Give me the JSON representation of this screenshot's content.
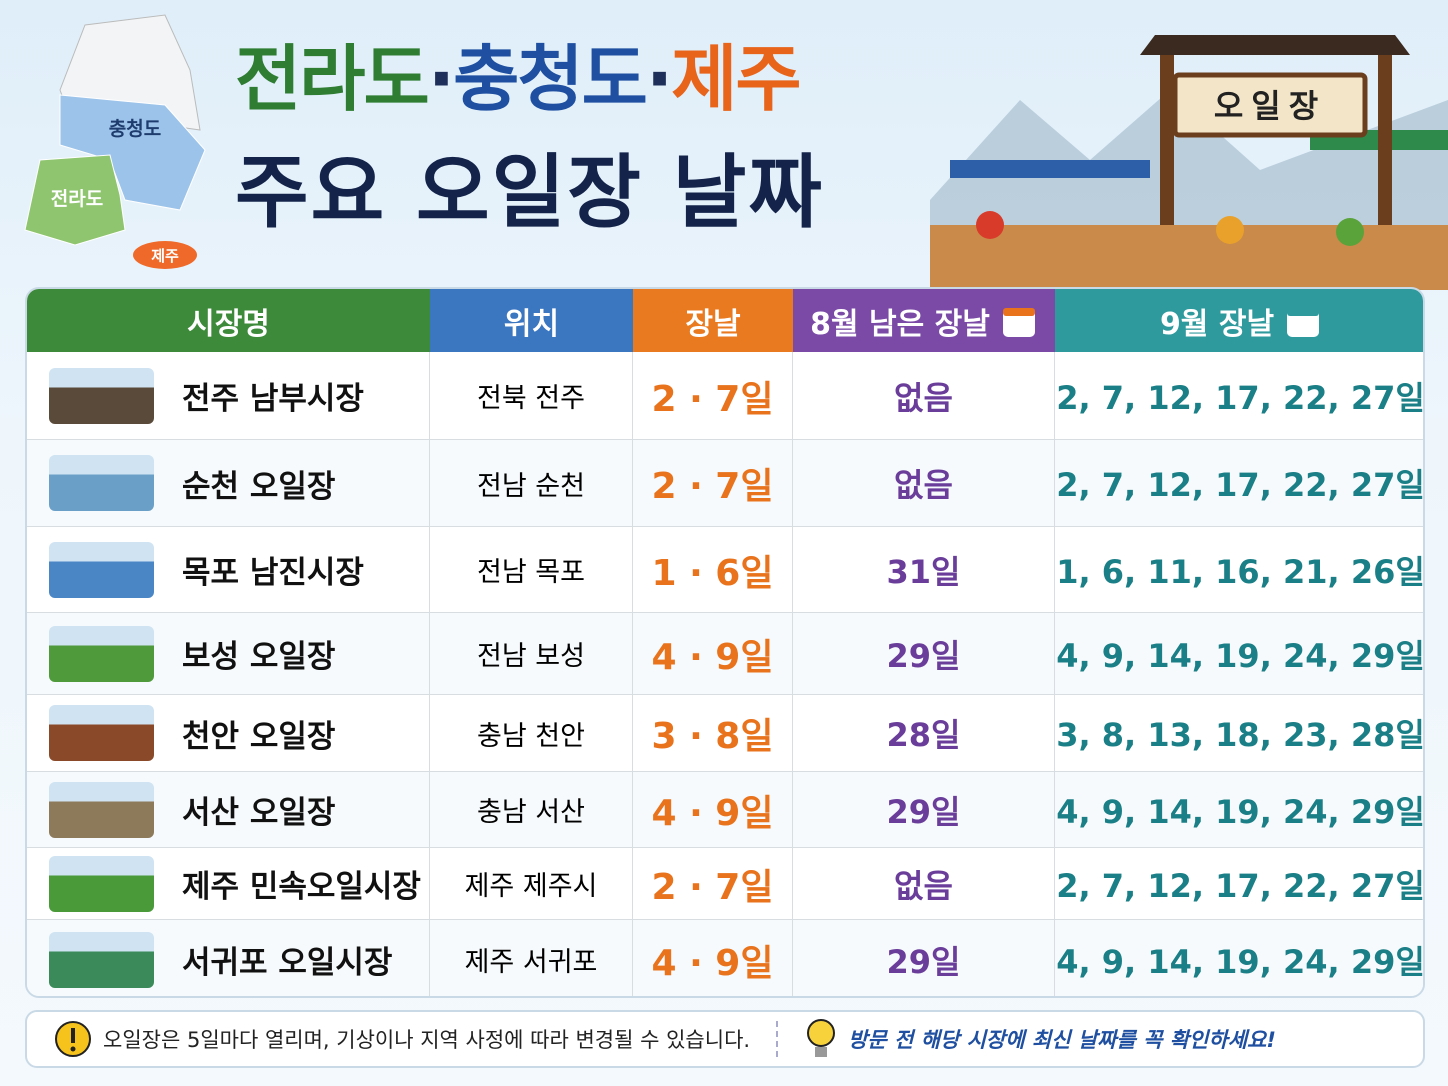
{
  "map": {
    "labels": [
      "충청도",
      "전라도",
      "제주"
    ]
  },
  "title": {
    "line1": [
      "전라도",
      "·",
      "충청도",
      "·",
      "제주"
    ],
    "line2": "주요 오일장 날짜"
  },
  "sign": "오일장",
  "table": {
    "headers": [
      "시장명",
      "위치",
      "장날",
      "8월 남은 장날",
      "9월 장날"
    ],
    "rows": [
      [
        "전주 남부시장",
        "전북 전주",
        "2 · 7일",
        "없음",
        "2, 7, 12, 17, 22, 27일"
      ],
      [
        "순천 오일장",
        "전남 순천",
        "2 · 7일",
        "없음",
        "2, 7, 12, 17, 22, 27일"
      ],
      [
        "목포 남진시장",
        "전남 목포",
        "1 · 6일",
        "31일",
        "1, 6, 11, 16, 21, 26일"
      ],
      [
        "보성 오일장",
        "전남 보성",
        "4 · 9일",
        "29일",
        "4, 9, 14, 19, 24, 29일"
      ],
      [
        "천안 오일장",
        "충남 천안",
        "3 · 8일",
        "28일",
        "3, 8, 13, 18, 23, 28일"
      ],
      [
        "서산 오일장",
        "충남 서산",
        "4 · 9일",
        "29일",
        "4, 9, 14, 19, 24, 29일"
      ],
      [
        "제주 민속오일시장",
        "제주 제주시",
        "2 · 7일",
        "없음",
        "2, 7, 12, 17, 22, 27일"
      ],
      [
        "서귀포 오일시장",
        "제주 서귀포",
        "4 · 9일",
        "29일",
        "4, 9, 14, 19, 24, 29일"
      ]
    ]
  },
  "footer": {
    "notice": "오일장은 5일마다 열리며, 기상이나 지역 사정에 따라 변경될 수 있습니다.",
    "tip": "방문 전 해당 시장에 최신 날짜를 꼭 확인하세요!"
  }
}
